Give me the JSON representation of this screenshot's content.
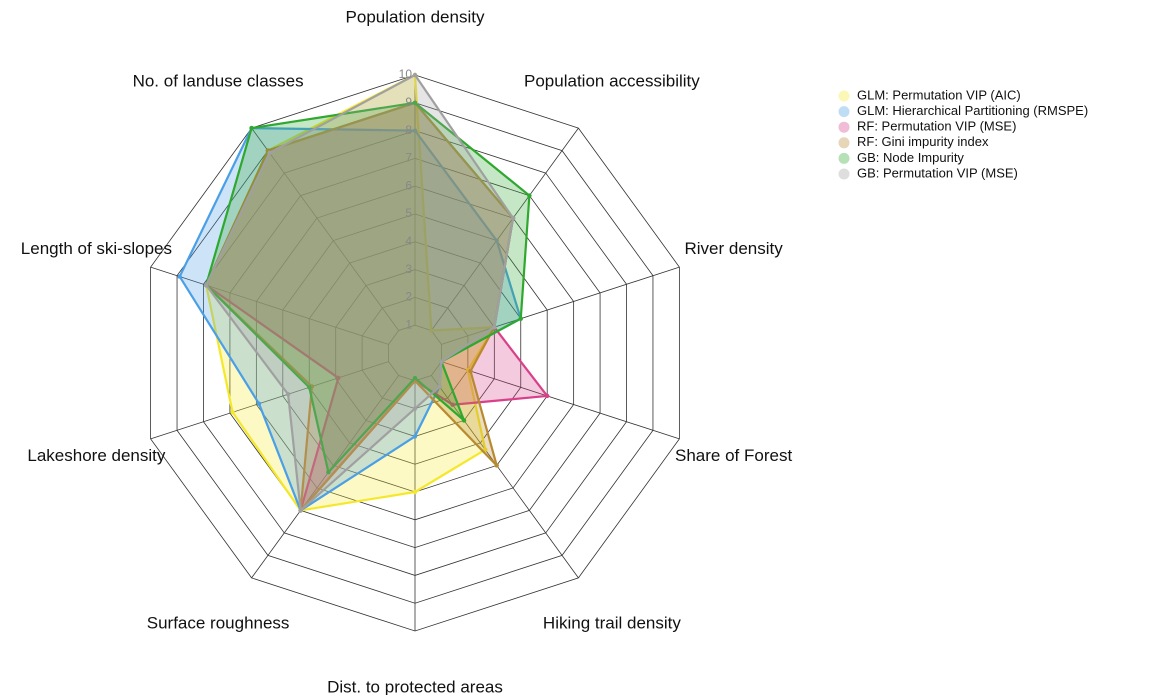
{
  "chart_data": {
    "type": "radar",
    "categories": [
      "Population density",
      "Population accessibility",
      "River density",
      "Share of Forest",
      "Hiking trail density",
      "Dist. to protected areas",
      "Surface roughness",
      "Lakeshore density",
      "Length of ski-slopes",
      "No. of landuse classes"
    ],
    "rlim": [
      0,
      10
    ],
    "rticks": [
      1,
      2,
      3,
      4,
      5,
      6,
      7,
      8,
      9,
      10
    ],
    "series": [
      {
        "name": "GLM: Permutation VIP (AIC)",
        "color": "#f5e82a",
        "values": [
          10,
          1,
          3,
          2,
          4.3,
          5,
          7,
          6.9,
          7.9,
          9
        ]
      },
      {
        "name": "GLM: Hierarchical Partitioning (RMSPE)",
        "color": "#4a9fe6",
        "values": [
          8,
          5,
          4,
          1,
          1.5,
          3,
          7,
          5.9,
          8.9,
          10
        ]
      },
      {
        "name": "RF: Permutation VIP (MSE)",
        "color": "#d8408a",
        "values": [
          9,
          6,
          3,
          5,
          2.3,
          1,
          7,
          2.9,
          7.9,
          9
        ]
      },
      {
        "name": "RF: Gini impurity index",
        "color": "#b88a30",
        "values": [
          9,
          6,
          3,
          2.1,
          5,
          1,
          7,
          3.9,
          7.9,
          9
        ]
      },
      {
        "name": "GB: Node Impurity",
        "color": "#2ea82e",
        "values": [
          9,
          7,
          4,
          1,
          3,
          0.9,
          5.3,
          4,
          7.9,
          10
        ]
      },
      {
        "name": "GB: Permutation VIP (MSE)",
        "color": "#a0a0a0",
        "values": [
          10,
          6,
          3,
          1,
          1.5,
          2,
          7,
          4.8,
          7.9,
          8.9
        ]
      }
    ]
  }
}
